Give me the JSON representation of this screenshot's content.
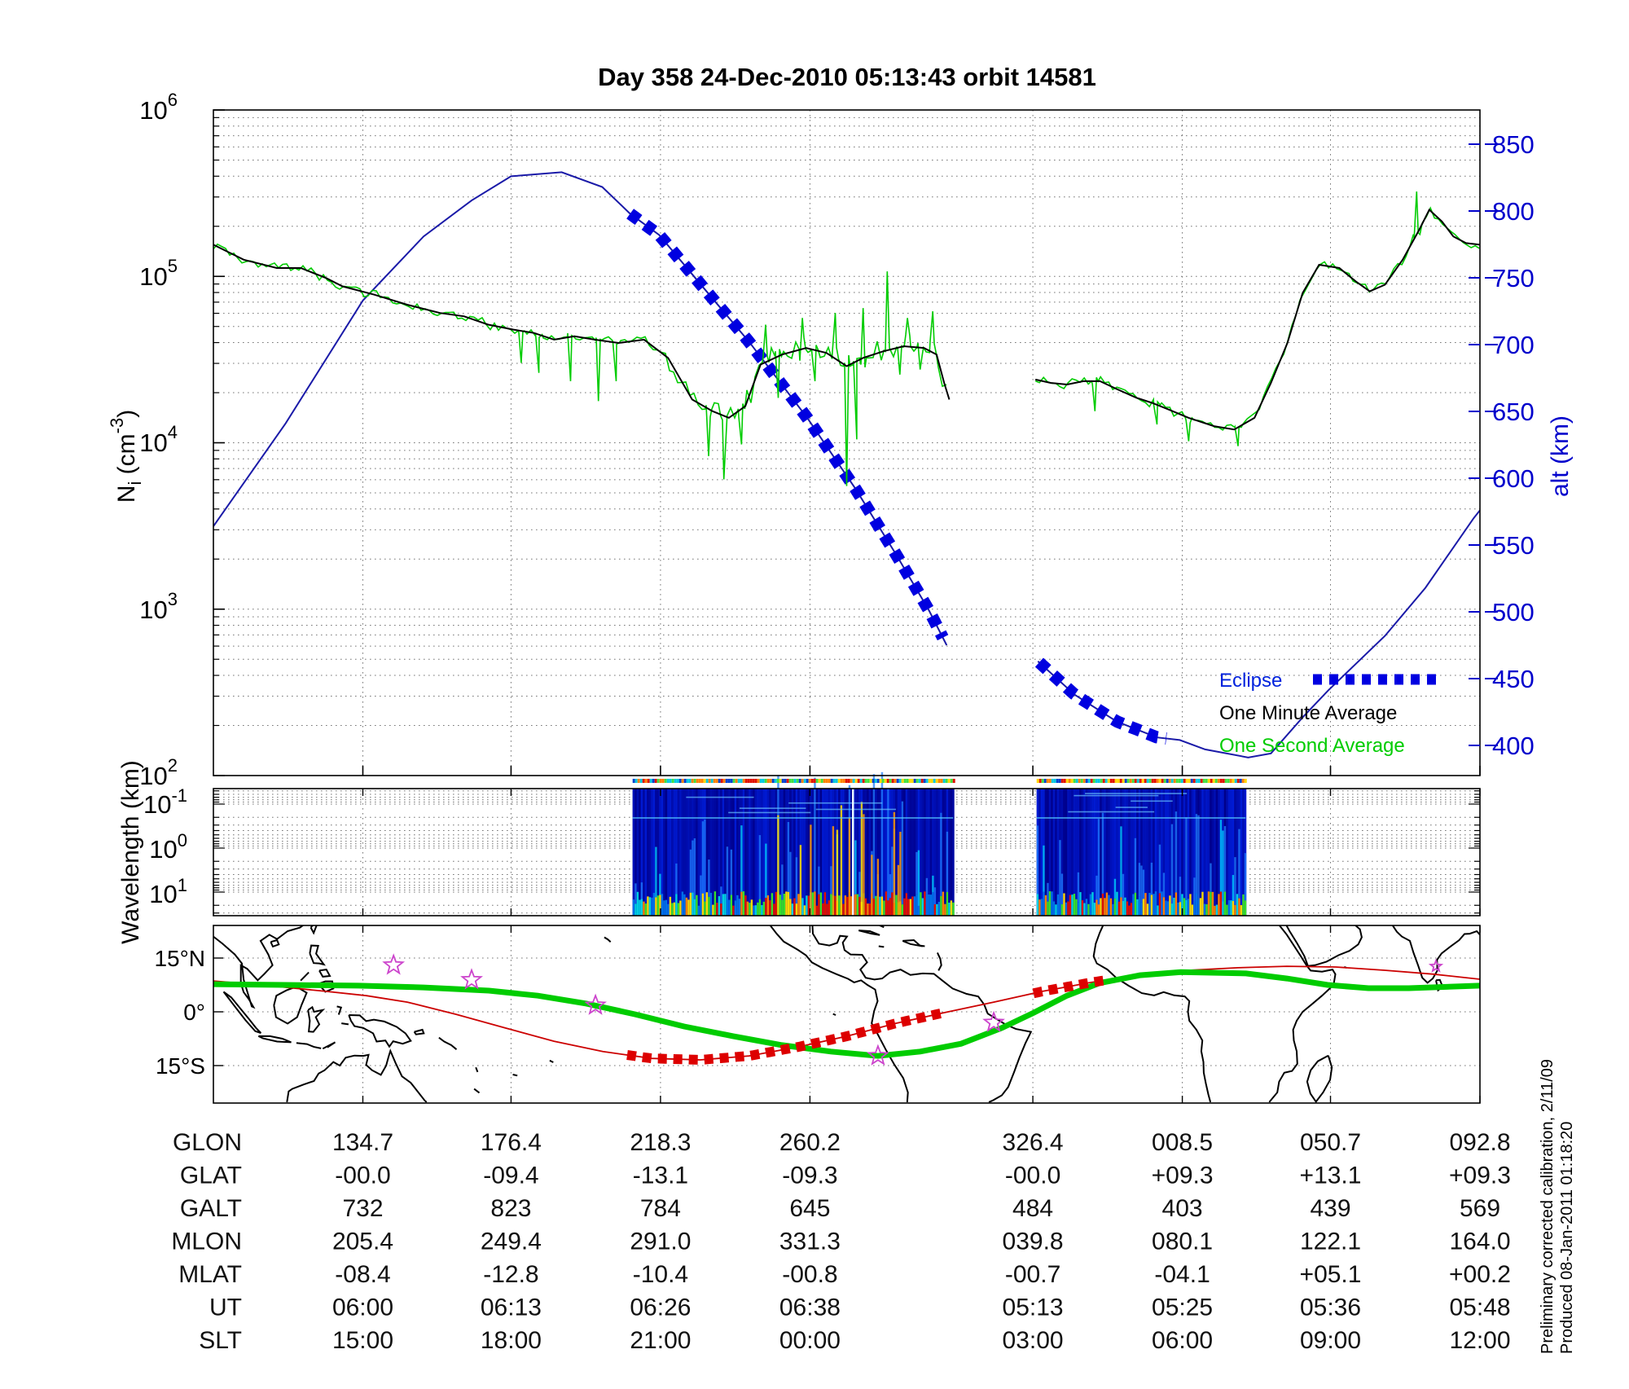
{
  "title": "Day 358  24-Dec-2010 05:13:43   orbit 14581",
  "colors": {
    "alt_axis": "#0000cc",
    "alt_curve": "#1a1aa8",
    "eclipse": "#0000e0",
    "one_minute": "#000000",
    "one_second": "#00cc00",
    "map_track": "#00cc00",
    "mag_equator": "#cc0000",
    "map_eclipse": "#dd0000",
    "star": "#cc44cc"
  },
  "top_chart": {
    "ylabel": {
      "base": "N",
      "sub": "i",
      "mid": " (cm",
      "sup": "-3",
      "end": ")"
    },
    "y_ticks": [
      {
        "base": "10",
        "exp": "6"
      },
      {
        "base": "10",
        "exp": "5"
      },
      {
        "base": "10",
        "exp": "4"
      },
      {
        "base": "10",
        "exp": "3"
      },
      {
        "base": "10",
        "exp": "2"
      }
    ],
    "alt_label": "alt (km)",
    "alt_ticks": [
      "850",
      "800",
      "750",
      "700",
      "650",
      "600",
      "550",
      "500",
      "450",
      "400"
    ],
    "legend": [
      {
        "label": "Eclipse"
      },
      {
        "label": "One Minute Average"
      },
      {
        "label": "One Second Average"
      }
    ]
  },
  "spectrogram": {
    "ylabel": "Wavelength (km)",
    "y_ticks": [
      {
        "base": "10",
        "exp": "-1"
      },
      {
        "base": "10",
        "exp": "0"
      },
      {
        "base": "10",
        "exp": "1"
      }
    ]
  },
  "map": {
    "lat_labels": [
      "15°N",
      "0°",
      "15°S"
    ]
  },
  "table": {
    "rows": [
      {
        "label": "GLON",
        "values": [
          "134.7",
          "176.4",
          "218.3",
          "260.2",
          "326.4",
          "008.5",
          "050.7",
          "092.8"
        ]
      },
      {
        "label": "GLAT",
        "values": [
          "-00.0",
          "-09.4",
          "-13.1",
          "-09.3",
          "-00.0",
          "+09.3",
          "+13.1",
          "+09.3"
        ]
      },
      {
        "label": "GALT",
        "values": [
          "732",
          "823",
          "784",
          "645",
          "484",
          "403",
          "439",
          "569"
        ]
      },
      {
        "label": "MLON",
        "values": [
          "205.4",
          "249.4",
          "291.0",
          "331.3",
          "039.8",
          "080.1",
          "122.1",
          "164.0"
        ]
      },
      {
        "label": "MLAT",
        "values": [
          "-08.4",
          "-12.8",
          "-10.4",
          "-00.8",
          "-00.7",
          "-04.1",
          "+05.1",
          "+00.2"
        ]
      },
      {
        "label": "UT",
        "values": [
          "06:00",
          "06:13",
          "06:26",
          "06:38",
          "05:13",
          "05:25",
          "05:36",
          "05:48"
        ]
      },
      {
        "label": "SLT",
        "values": [
          "15:00",
          "18:00",
          "21:00",
          "00:00",
          "03:00",
          "06:00",
          "09:00",
          "12:00"
        ]
      }
    ]
  },
  "footer_notes": [
    "Preliminary corrected calibration, 2/11/09",
    "Produced 08-Jan-2011 01:18:20"
  ],
  "chart_data": {
    "type": "line",
    "title": "Day 358  24-Dec-2010 05:13:43   orbit 14581",
    "x_axis": "orbit position (fraction of plot; tick columns carry GLON/GLAT/GALT/MLON/MLAT/UT/SLT values from table)",
    "tick_u": [
      0.118,
      0.235,
      0.353,
      0.471,
      0.647,
      0.765,
      0.882,
      1.0
    ],
    "ni_ylim_log10": [
      2,
      6
    ],
    "alt_ylim_km": [
      378,
      878
    ],
    "wavelength_ylim_km": [
      0.045,
      28
    ],
    "legend_position": "lower right inside top panel",
    "grid": true,
    "series": [
      {
        "name": "alt (km) segment 1",
        "axis": "right",
        "units": "km",
        "points_u_km": [
          [
            0,
            564
          ],
          [
            0.057,
            641
          ],
          [
            0.118,
            733
          ],
          [
            0.166,
            781
          ],
          [
            0.204,
            808
          ],
          [
            0.235,
            826
          ],
          [
            0.275,
            829
          ],
          [
            0.307,
            818
          ],
          [
            0.329,
            798
          ],
          [
            0.352,
            782
          ],
          [
            0.391,
            738
          ],
          [
            0.423,
            702
          ],
          [
            0.469,
            645
          ],
          [
            0.507,
            592
          ],
          [
            0.539,
            543
          ],
          [
            0.565,
            501
          ],
          [
            0.579,
            475
          ]
        ]
      },
      {
        "name": "alt (km) segment 2",
        "axis": "right",
        "units": "km",
        "points_u_km": [
          [
            0.651,
            463
          ],
          [
            0.68,
            438
          ],
          [
            0.713,
            418
          ],
          [
            0.745,
            406
          ],
          [
            0.763,
            404
          ],
          [
            0.783,
            397
          ],
          [
            0.817,
            391
          ],
          [
            0.835,
            394
          ],
          [
            0.86,
            421
          ],
          [
            0.88,
            441
          ],
          [
            0.925,
            482
          ],
          [
            0.957,
            518
          ],
          [
            0.995,
            570
          ],
          [
            1,
            576
          ]
        ]
      },
      {
        "name": "Eclipse (thick dashed over alt curve)",
        "axis": "right",
        "u_ranges": [
          [
            0.329,
            0.579
          ],
          [
            0.652,
            0.754
          ]
        ]
      },
      {
        "name": "One Minute Average segment 1",
        "axis": "left",
        "units": "log10 cm-3",
        "points_u_log10": [
          [
            0,
            5.19
          ],
          [
            0.024,
            5.1
          ],
          [
            0.05,
            5.05
          ],
          [
            0.069,
            5.05
          ],
          [
            0.089,
            4.99
          ],
          [
            0.102,
            4.94
          ],
          [
            0.127,
            4.89
          ],
          [
            0.153,
            4.83
          ],
          [
            0.179,
            4.78
          ],
          [
            0.198,
            4.76
          ],
          [
            0.217,
            4.71
          ],
          [
            0.237,
            4.68
          ],
          [
            0.253,
            4.66
          ],
          [
            0.269,
            4.62
          ],
          [
            0.285,
            4.64
          ],
          [
            0.301,
            4.62
          ],
          [
            0.32,
            4.6
          ],
          [
            0.34,
            4.62
          ],
          [
            0.359,
            4.51
          ],
          [
            0.378,
            4.26
          ],
          [
            0.394,
            4.19
          ],
          [
            0.407,
            4.15
          ],
          [
            0.42,
            4.22
          ],
          [
            0.432,
            4.47
          ],
          [
            0.449,
            4.53
          ],
          [
            0.468,
            4.57
          ],
          [
            0.484,
            4.54
          ],
          [
            0.5,
            4.46
          ],
          [
            0.513,
            4.51
          ],
          [
            0.529,
            4.55
          ],
          [
            0.545,
            4.58
          ],
          [
            0.561,
            4.57
          ],
          [
            0.571,
            4.53
          ],
          [
            0.577,
            4.36
          ],
          [
            0.581,
            4.26
          ]
        ]
      },
      {
        "name": "One Minute Average segment 2",
        "axis": "left",
        "units": "log10 cm-3",
        "points_u_log10": [
          [
            0.649,
            4.38
          ],
          [
            0.661,
            4.36
          ],
          [
            0.674,
            4.35
          ],
          [
            0.687,
            4.37
          ],
          [
            0.7,
            4.37
          ],
          [
            0.714,
            4.32
          ],
          [
            0.729,
            4.27
          ],
          [
            0.741,
            4.24
          ],
          [
            0.754,
            4.2
          ],
          [
            0.77,
            4.15
          ],
          [
            0.79,
            4.1
          ],
          [
            0.806,
            4.08
          ],
          [
            0.822,
            4.15
          ],
          [
            0.835,
            4.36
          ],
          [
            0.848,
            4.6
          ],
          [
            0.86,
            4.9
          ],
          [
            0.873,
            5.07
          ],
          [
            0.889,
            5.05
          ],
          [
            0.902,
            4.97
          ],
          [
            0.913,
            4.91
          ],
          [
            0.925,
            4.95
          ],
          [
            0.939,
            5.1
          ],
          [
            0.952,
            5.28
          ],
          [
            0.96,
            5.4
          ],
          [
            0.97,
            5.33
          ],
          [
            0.979,
            5.24
          ],
          [
            0.989,
            5.2
          ],
          [
            1,
            5.19
          ]
        ]
      },
      {
        "name": "One Second Average (spikes below mean)",
        "axis": "left",
        "units": "log10 cm-3",
        "points_u_log10": [
          [
            0.243,
            4.48
          ],
          [
            0.257,
            4.42
          ],
          [
            0.282,
            4.37
          ],
          [
            0.304,
            4.25
          ],
          [
            0.318,
            4.37
          ],
          [
            0.391,
            3.92
          ],
          [
            0.403,
            3.78
          ],
          [
            0.417,
            3.99
          ],
          [
            0.446,
            4.27
          ],
          [
            0.475,
            4.37
          ],
          [
            0.5,
            3.74
          ],
          [
            0.508,
            4.02
          ],
          [
            0.542,
            4.41
          ],
          [
            0.558,
            4.44
          ],
          [
            0.696,
            4.19
          ],
          [
            0.745,
            4.11
          ],
          [
            0.77,
            4.01
          ],
          [
            0.809,
            3.98
          ]
        ]
      },
      {
        "name": "One Second Average (spikes above mean)",
        "axis": "left",
        "units": "log10 cm-3",
        "points_u_log10": [
          [
            0.436,
            4.71
          ],
          [
            0.465,
            4.75
          ],
          [
            0.491,
            4.78
          ],
          [
            0.513,
            4.81
          ],
          [
            0.532,
            5.03
          ],
          [
            0.548,
            4.75
          ],
          [
            0.568,
            4.79
          ],
          [
            0.95,
            5.51
          ]
        ]
      }
    ],
    "spectrogram_blocks_u": [
      [
        0.331,
        0.584
      ],
      [
        0.65,
        0.815
      ]
    ],
    "map": {
      "lat_gridlines_deg": [
        15,
        0,
        -15
      ],
      "lat_range_deg": [
        -25.2,
        24.5
      ],
      "lon_range_plot_deg": [
        92.4,
        452.4
      ],
      "ground_track_green_lonlat": [
        [
          92.4,
          7.7
        ],
        [
          112.8,
          7.5
        ],
        [
          133.6,
          7.3
        ],
        [
          152.1,
          6.8
        ],
        [
          170.7,
          5.9
        ],
        [
          184.6,
          4.5
        ],
        [
          198.4,
          2.3
        ],
        [
          212.3,
          -0.7
        ],
        [
          226.2,
          -4.1
        ],
        [
          240.1,
          -6.8
        ],
        [
          254,
          -9.3
        ],
        [
          267.9,
          -11.1
        ],
        [
          281.3,
          -12.3
        ],
        [
          293.3,
          -11.1
        ],
        [
          304.9,
          -8.9
        ],
        [
          316.5,
          -4.5
        ],
        [
          325.7,
          -0.2
        ],
        [
          335,
          4.5
        ],
        [
          344.2,
          8
        ],
        [
          355.8,
          10.2
        ],
        [
          367.4,
          11.1
        ],
        [
          385.9,
          10.7
        ],
        [
          397.5,
          9.3
        ],
        [
          409.1,
          7.5
        ],
        [
          420.7,
          6.6
        ],
        [
          432.2,
          6.6
        ],
        [
          452.4,
          7.3
        ]
      ],
      "mag_equator_red_lonlat": [
        [
          92.4,
          8.6
        ],
        [
          108.1,
          7.3
        ],
        [
          124.4,
          5.7
        ],
        [
          135.9,
          4.5
        ],
        [
          147.5,
          2.7
        ],
        [
          161.4,
          -0.7
        ],
        [
          175.3,
          -4.5
        ],
        [
          189.2,
          -8.2
        ],
        [
          203.1,
          -11.1
        ],
        [
          217,
          -13
        ],
        [
          230.8,
          -13.4
        ],
        [
          244.7,
          -12.3
        ],
        [
          258.6,
          -9.8
        ],
        [
          272.5,
          -6.8
        ],
        [
          286.4,
          -3.2
        ],
        [
          300.3,
          -0.2
        ],
        [
          314.2,
          2.7
        ],
        [
          328,
          5.7
        ],
        [
          341.9,
          8.2
        ],
        [
          355.8,
          10.2
        ],
        [
          369.7,
          11.6
        ],
        [
          383.6,
          12.3
        ],
        [
          397.5,
          12.7
        ],
        [
          411.4,
          12.5
        ],
        [
          425.3,
          11.6
        ],
        [
          439.2,
          10.5
        ],
        [
          452.4,
          9.1
        ]
      ],
      "eclipse_dash_lon_ranges": [
        [
          210,
          300.3
        ],
        [
          325.5,
          348.2
        ]
      ],
      "stars_lonlat": [
        [
          143.6,
          13
        ],
        [
          165.8,
          8.9
        ],
        [
          201,
          1.8
        ],
        [
          281.3,
          -12.3
        ],
        [
          314.2,
          -3
        ],
        [
          439.9,
          12.7
        ]
      ]
    }
  }
}
